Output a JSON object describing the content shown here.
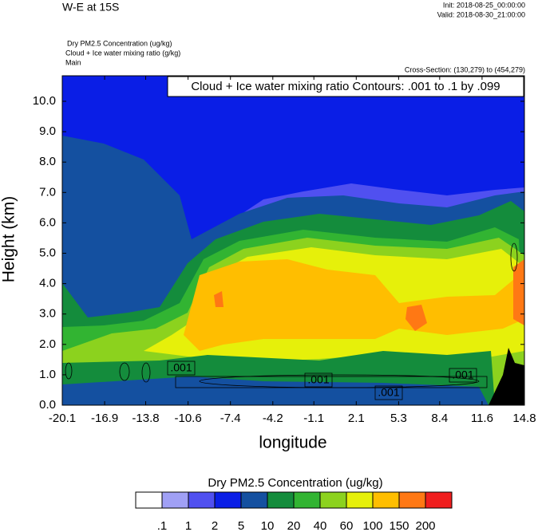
{
  "header": {
    "title": "W-E at 15S",
    "init": "Init: 2018-08-25_00:00:00",
    "valid": "Valid: 2018-08-30_21:00:00",
    "fields": [
      "Dry PM2.5 Concentration   (ug/kg)",
      "Cloud + Ice water mixing ratio   (g/kg)",
      "Main"
    ],
    "cross_section": "Cross-Section: (130,279) to (454,279)"
  },
  "chart_data": {
    "type": "contour",
    "annotation": "Cloud + Ice water mixing ratio Contours: .001 to .1 by .099",
    "xlabel": "longitude",
    "ylabel": "Height (km)",
    "xlim": [
      -20.1,
      14.8
    ],
    "xticks": [
      -20.1,
      -16.9,
      -13.8,
      -10.6,
      -7.4,
      -4.2,
      -1.1,
      2.1,
      5.3,
      8.4,
      11.6,
      14.8
    ],
    "ylim": [
      0,
      10.84
    ],
    "yticks": [
      {
        "value": 0,
        "label": "0.0"
      },
      {
        "value": 1,
        "label": "1.0"
      },
      {
        "value": 2,
        "label": "2.0"
      },
      {
        "value": 3,
        "label": "3.0"
      },
      {
        "value": 4,
        "label": "4.0"
      },
      {
        "value": 5,
        "label": "5.0"
      },
      {
        "value": 6,
        "label": "6.0"
      },
      {
        "value": 7,
        "label": "7.0"
      },
      {
        "value": 8,
        "label": "8.0"
      },
      {
        "value": 9,
        "label": "9.0"
      },
      {
        "value": 10,
        "label": "10.0"
      }
    ],
    "contour_labels": [
      ".001",
      ".001",
      ".001",
      ".001"
    ],
    "colorbar": {
      "title": "Dry PM2.5 Concentration  (ug/kg)",
      "levels": [
        {
          "value": 0.1,
          "label": ".1"
        },
        1,
        2,
        5,
        10,
        20,
        40,
        60,
        100,
        150,
        200
      ],
      "colors": [
        "#ffffff",
        "#a0a0f5",
        "#5050f0",
        "#0a1ee6",
        "#1450a0",
        "#148c3c",
        "#32b432",
        "#8cd21e",
        "#e6f00a",
        "#ffbe00",
        "#ff7814",
        "#f01e1e"
      ]
    }
  }
}
